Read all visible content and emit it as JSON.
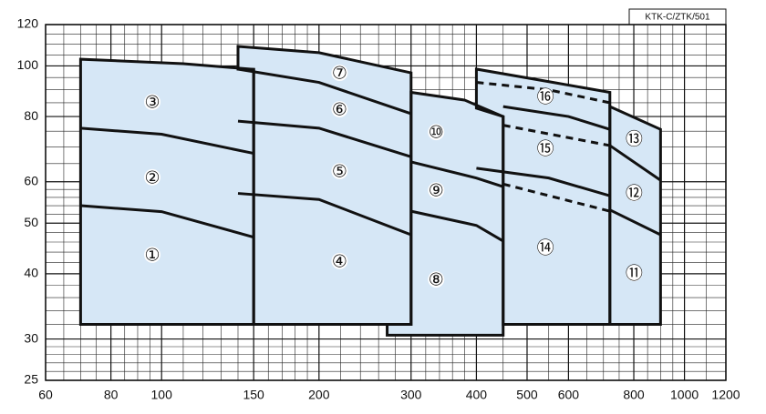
{
  "chart_data": {
    "type": "region",
    "tag": "KTK-C/ZTK/501",
    "xlim": [
      60,
      1200
    ],
    "ylim": [
      25,
      120
    ],
    "xscale": "log",
    "yscale": "log",
    "xticks": [
      60,
      80,
      100,
      150,
      200,
      300,
      400,
      500,
      600,
      800,
      1000,
      1200
    ],
    "yticks": [
      25,
      30,
      40,
      50,
      60,
      80,
      100,
      120
    ],
    "xminor": [
      65,
      70,
      75,
      85,
      90,
      95,
      110,
      120,
      130,
      140,
      160,
      170,
      180,
      190,
      220,
      240,
      260,
      280,
      320,
      340,
      360,
      380,
      450,
      550,
      650,
      700,
      750,
      850,
      900,
      950,
      1100
    ],
    "yminor": [
      26,
      27,
      28,
      29,
      32,
      34,
      36,
      38,
      42,
      44,
      46,
      48,
      52,
      54,
      56,
      58,
      65,
      70,
      75,
      85,
      90,
      95,
      105,
      110,
      115
    ],
    "fill": "#d6e7f6",
    "stroke": "#111111",
    "regions": [
      {
        "x": [
          70,
          70,
          110,
          150,
          150
        ],
        "y": [
          32,
          103,
          101,
          98.5,
          32
        ]
      },
      {
        "x": [
          150,
          150,
          140,
          140,
          200,
          300,
          300
        ],
        "y": [
          32,
          98.5,
          98.6,
          109,
          106,
          97,
          32
        ]
      },
      {
        "x": [
          450,
          400,
          400,
          560,
          720,
          720,
          450
        ],
        "y": [
          80,
          83,
          98.6,
          93,
          89,
          32,
          32
        ]
      },
      {
        "x": [
          300,
          380,
          450,
          450,
          270,
          270,
          300
        ],
        "y": [
          89,
          86,
          80,
          30.5,
          30.5,
          32,
          32
        ]
      },
      {
        "x": [
          720,
          900,
          900,
          720
        ],
        "y": [
          83.6,
          75.6,
          32,
          32
        ]
      }
    ],
    "curves": [
      {
        "x": [
          70,
          100,
          150
        ],
        "y": [
          76,
          74,
          68
        ],
        "style": "solid"
      },
      {
        "x": [
          70,
          100,
          150
        ],
        "y": [
          54,
          52.6,
          47
        ],
        "style": "solid"
      },
      {
        "x": [
          140,
          200,
          300
        ],
        "y": [
          98.6,
          93,
          81
        ],
        "style": "solid"
      },
      {
        "x": [
          140,
          200,
          300
        ],
        "y": [
          78.4,
          76,
          67
        ],
        "style": "solid"
      },
      {
        "x": [
          140,
          200,
          300
        ],
        "y": [
          57,
          55.5,
          47.5
        ],
        "style": "solid"
      },
      {
        "x": [
          300,
          400,
          450
        ],
        "y": [
          65.5,
          61,
          58.7
        ],
        "style": "solid"
      },
      {
        "x": [
          300,
          400,
          450
        ],
        "y": [
          52.7,
          49.5,
          46.2
        ],
        "style": "solid"
      },
      {
        "x": [
          400,
          550,
          720
        ],
        "y": [
          93,
          90,
          85
        ],
        "style": "dashed"
      },
      {
        "x": [
          450,
          600,
          720
        ],
        "y": [
          83.6,
          80,
          75.6
        ],
        "style": "solid"
      },
      {
        "x": [
          450,
          720
        ],
        "y": [
          77,
          70.4
        ],
        "style": "dashed"
      },
      {
        "x": [
          400,
          550,
          720
        ],
        "y": [
          63.7,
          61,
          56.4
        ],
        "style": "solid"
      },
      {
        "x": [
          450,
          720
        ],
        "y": [
          59.4,
          52.7
        ],
        "style": "dashed"
      },
      {
        "x": [
          720,
          900
        ],
        "y": [
          70.4,
          60.4
        ],
        "style": "solid"
      },
      {
        "x": [
          720,
          900
        ],
        "y": [
          53,
          47.5
        ],
        "style": "solid"
      }
    ],
    "labels": [
      {
        "text": "①",
        "x": 96,
        "y": 43.5
      },
      {
        "text": "②",
        "x": 96,
        "y": 61.2
      },
      {
        "text": "③",
        "x": 96,
        "y": 85.3
      },
      {
        "text": "④",
        "x": 219,
        "y": 42.3
      },
      {
        "text": "⑤",
        "x": 219,
        "y": 62.9
      },
      {
        "text": "⑥",
        "x": 219,
        "y": 82.6
      },
      {
        "text": "⑦",
        "x": 219,
        "y": 97
      },
      {
        "text": "⑧",
        "x": 335,
        "y": 39
      },
      {
        "text": "⑨",
        "x": 335,
        "y": 57.8
      },
      {
        "text": "⑩",
        "x": 335,
        "y": 74.7
      },
      {
        "text": "⑪",
        "x": 801,
        "y": 40.1
      },
      {
        "text": "⑫",
        "x": 801,
        "y": 57.1
      },
      {
        "text": "⑬",
        "x": 801,
        "y": 72.6
      },
      {
        "text": "⑭",
        "x": 542,
        "y": 44.9
      },
      {
        "text": "⑮",
        "x": 542,
        "y": 69.5
      },
      {
        "text": "⑯",
        "x": 542,
        "y": 87.4
      }
    ]
  }
}
